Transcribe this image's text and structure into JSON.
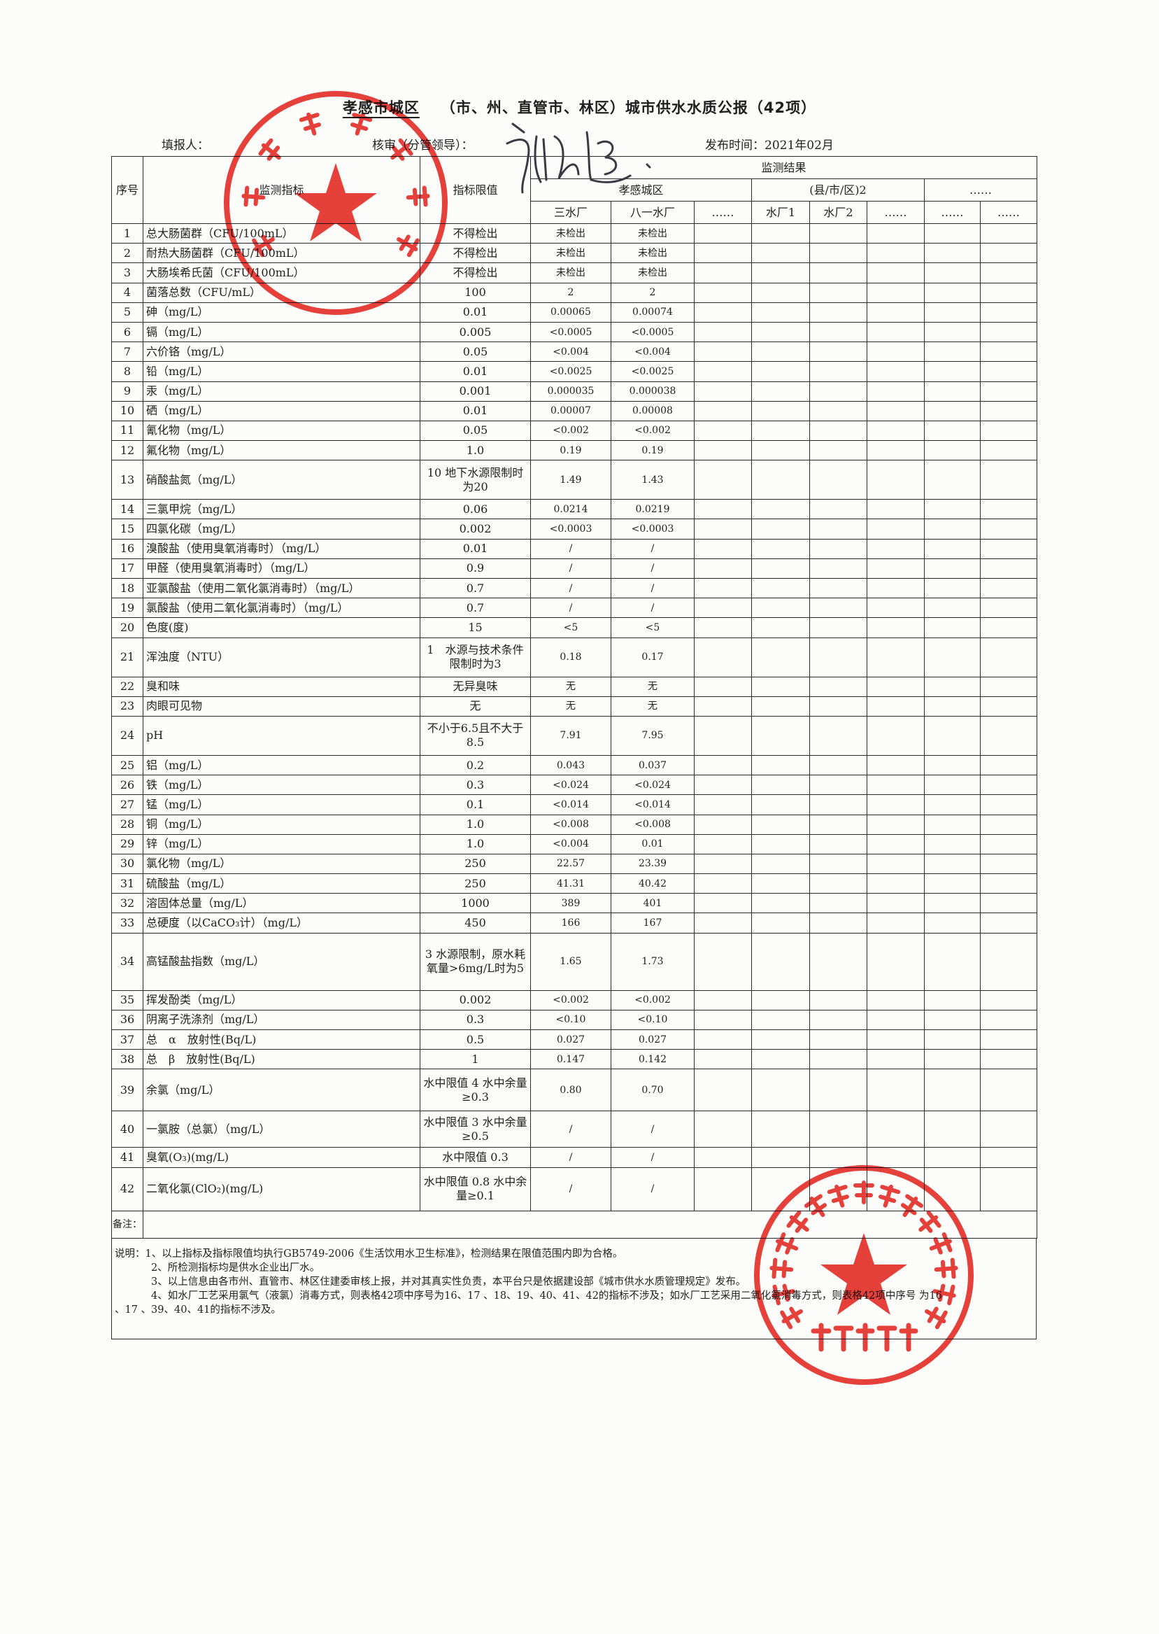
{
  "header": {
    "title_city": "孝感市城区",
    "title_rest": "（市、州、直管市、林区）城市供水水质公报（42项）",
    "reporter_label": "填报人：",
    "reviewer_label": "核审（分管领导）：",
    "publish_label": "发布时间：2021年02月"
  },
  "table": {
    "col_no": "序号",
    "col_indicator": "监测指标",
    "col_limit": "指标限值",
    "col_results": "监测结果",
    "groups": [
      "孝感城区",
      "(县/市/区)2",
      "……"
    ],
    "plants": [
      "三水厂",
      "八一水厂",
      "……",
      "水厂1",
      "水厂2",
      "……",
      "……",
      "……"
    ],
    "rows": [
      [
        "1",
        "总大肠菌群（CFU/100mL）",
        "不得检出",
        "未检出",
        "未检出"
      ],
      [
        "2",
        "耐热大肠菌群（CFU/100mL）",
        "不得检出",
        "未检出",
        "未检出"
      ],
      [
        "3",
        "大肠埃希氏菌（CFU/100mL）",
        "不得检出",
        "未检出",
        "未检出"
      ],
      [
        "4",
        "菌落总数（CFU/mL）",
        "100",
        "2",
        "2"
      ],
      [
        "5",
        "砷（mg/L）",
        "0.01",
        "0.00065",
        "0.00074"
      ],
      [
        "6",
        "镉（mg/L）",
        "0.005",
        "<0.0005",
        "<0.0005"
      ],
      [
        "7",
        "六价铬（mg/L）",
        "0.05",
        "<0.004",
        "<0.004"
      ],
      [
        "8",
        "铅（mg/L）",
        "0.01",
        "<0.0025",
        "<0.0025"
      ],
      [
        "9",
        "汞（mg/L）",
        "0.001",
        "0.000035",
        "0.000038"
      ],
      [
        "10",
        "硒（mg/L）",
        "0.01",
        "0.00007",
        "0.00008"
      ],
      [
        "11",
        "氰化物（mg/L）",
        "0.05",
        "<0.002",
        "<0.002"
      ],
      [
        "12",
        "氟化物（mg/L）",
        "1.0",
        "0.19",
        "0.19"
      ],
      [
        "13",
        "硝酸盐氮（mg/L）",
        "10 地下水源限制时为20",
        "1.49",
        "1.43"
      ],
      [
        "14",
        "三氯甲烷（mg/L）",
        "0.06",
        "0.0214",
        "0.0219"
      ],
      [
        "15",
        "四氯化碳（mg/L）",
        "0.002",
        "<0.0003",
        "<0.0003"
      ],
      [
        "16",
        "溴酸盐（使用臭氧消毒时）（mg/L）",
        "0.01",
        "/",
        "/"
      ],
      [
        "17",
        "甲醛（使用臭氧消毒时）（mg/L）",
        "0.9",
        "/",
        "/"
      ],
      [
        "18",
        "亚氯酸盐（使用二氧化氯消毒时）（mg/L）",
        "0.7",
        "/",
        "/"
      ],
      [
        "19",
        "氯酸盐（使用二氧化氯消毒时）（mg/L）",
        "0.7",
        "/",
        "/"
      ],
      [
        "20",
        "色度(度)",
        "15",
        "<5",
        "<5"
      ],
      [
        "21",
        "浑浊度（NTU）",
        "1　水源与技术条件限制时为3",
        "0.18",
        "0.17"
      ],
      [
        "22",
        "臭和味",
        "无异臭味",
        "无",
        "无"
      ],
      [
        "23",
        "肉眼可见物",
        "无",
        "无",
        "无"
      ],
      [
        "24",
        "pH",
        "不小于6.5且不大于8.5",
        "7.91",
        "7.95"
      ],
      [
        "25",
        "铝（mg/L）",
        "0.2",
        "0.043",
        "0.037"
      ],
      [
        "26",
        "铁（mg/L）",
        "0.3",
        "<0.024",
        "<0.024"
      ],
      [
        "27",
        "锰（mg/L）",
        "0.1",
        "<0.014",
        "<0.014"
      ],
      [
        "28",
        "铜（mg/L）",
        "1.0",
        "<0.008",
        "<0.008"
      ],
      [
        "29",
        "锌（mg/L）",
        "1.0",
        "<0.004",
        "0.01"
      ],
      [
        "30",
        "氯化物（mg/L）",
        "250",
        "22.57",
        "23.39"
      ],
      [
        "31",
        "硫酸盐（mg/L）",
        "250",
        "41.31",
        "40.42"
      ],
      [
        "32",
        "溶固体总量（mg/L）",
        "1000",
        "389",
        "401"
      ],
      [
        "33",
        "总硬度（以CaCO₃计）（mg/L）",
        "450",
        "166",
        "167"
      ],
      [
        "34",
        "高锰酸盐指数（mg/L）",
        "3 水源限制，原水耗氧量>6mg/L时为5",
        "1.65",
        "1.73"
      ],
      [
        "35",
        "挥发酚类（mg/L）",
        "0.002",
        "<0.002",
        "<0.002"
      ],
      [
        "36",
        "阴离子洗涤剂（mg/L）",
        "0.3",
        "<0.10",
        "<0.10"
      ],
      [
        "37",
        "总　α　放射性(Bq/L)",
        "0.5",
        "0.027",
        "0.027"
      ],
      [
        "38",
        "总　β　放射性(Bq/L)",
        "1",
        "0.147",
        "0.142"
      ],
      [
        "39",
        "余氯（mg/L）",
        "水中限值 4 水中余量≥0.3",
        "0.80",
        "0.70"
      ],
      [
        "40",
        "一氯胺（总氯）（mg/L）",
        "水中限值 3 水中余量≥0.5",
        "/",
        "/"
      ],
      [
        "41",
        "臭氧(O₃)(mg/L)",
        "水中限值 0.3",
        "/",
        "/"
      ],
      [
        "42",
        "二氧化氯(ClO₂)(mg/L)",
        "水中限值 0.8 水中余量≥0.1",
        "/",
        "/"
      ]
    ],
    "remark_label": "备注："
  },
  "notes": [
    "说明：1、以上指标及指标限值均执行GB5749-2006《生活饮用水卫生标准》，检测结果在限值范围内即为合格。",
    "2、所检测指标均是供水企业出厂水。",
    "3、以上信息由各市州、直管市、林区住建委审核上报，并对其真实性负责，本平台只是依据建设部《城市供水水质管理规定》发布。",
    "4、如水厂工艺采用氯气（液氯）消毒方式，则表格42项中序号为16、17 、18、19、40、41、42的指标不涉及；如水厂工艺采用二氧化氯消毒方式，则表格42项中序号 为16",
    "、17 、39、40、41的指标不涉及。"
  ],
  "stamps": {
    "left_text": "孝感市自来水公司",
    "left_code": "4209010046566",
    "right_text": "孝感市仙泉水质检测有限责任公司",
    "right_bottom": "检验检测专用章",
    "color": "#e8413a"
  }
}
